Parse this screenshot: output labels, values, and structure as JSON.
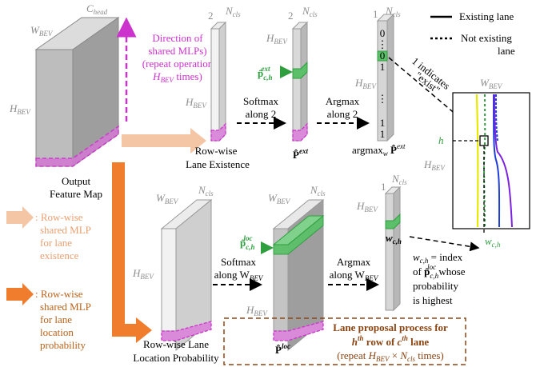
{
  "legend_lanes": {
    "existing": "Existing lane",
    "not_existing_1": "Not existing",
    "not_existing_2": "lane"
  },
  "output_map": {
    "c_head": "C",
    "c_head_sub": "head",
    "w_bev": "W",
    "w_bev_sub": "BEV",
    "h_bev": "H",
    "h_bev_sub": "BEV",
    "label_1": "Output",
    "label_2": "Feature Map"
  },
  "direction_note": {
    "line1": "Direction of",
    "line2": "shared MLPs)",
    "line3": "(repeat operation",
    "line4a": "H",
    "line4sub": "BEV",
    "line4b": " times)"
  },
  "existence_branch": {
    "dim2": "2",
    "ncls": "N",
    "ncls_sub": "cls",
    "hbev": "H",
    "hbev_sub": "BEV",
    "row_label_1": "Row-wise",
    "row_label_2": "Lane Existence",
    "softmax_1": "Softmax",
    "softmax_2": "along 2",
    "pext_label": "P̂",
    "pext_sup": "ext",
    "pcell": "p̂",
    "pcell_sub": "c,h",
    "pcell_sup": "ext",
    "argmax_1": "Argmax",
    "argmax_2": "along 2",
    "result_label": "argmax",
    "result_sub": "w",
    "result_p": " P̂",
    "result_sup": "ext",
    "vector_top": "1",
    "vector_values": [
      "0",
      "⋮",
      "0",
      "1",
      "⋮",
      "1",
      "1"
    ],
    "indicates_1": "1 indicates",
    "indicates_2": "\"exist\""
  },
  "location_branch": {
    "ncls": "N",
    "ncls_sub": "cls",
    "wbev": "W",
    "wbev_sub": "BEV",
    "hbev": "H",
    "hbev_sub": "BEV",
    "row_label_1": "Row-wise Lane",
    "row_label_2": "Location Probability",
    "softmax_1": "Softmax",
    "softmax_2": "along W",
    "softmax_2_sub": "BEV",
    "pcell": "p̂",
    "pcell_sub": "c,h",
    "pcell_sup": "loc",
    "ploc_label": "P̂",
    "ploc_sup": "loc",
    "argmax_1": "Argmax",
    "argmax_2": "along W",
    "argmax_2_sub": "BEV",
    "vector_top": "1",
    "wch": "w",
    "wch_sub": "c,h",
    "index_1": " = index",
    "index_2": "of ",
    "index_2b": " whose",
    "index_3": "probability",
    "index_4": "is highest"
  },
  "bev_view": {
    "wbev": "W",
    "wbev_sub": "BEV",
    "hbev": "H",
    "hbev_sub": "BEV",
    "h": "h",
    "wch": "w",
    "wch_sub": "c,h"
  },
  "legend_mlp": {
    "existence": [
      ": Row-wise",
      "shared MLP",
      "for lane",
      "existence"
    ],
    "location": [
      ": Row-wise",
      "shared MLP",
      "for lane",
      "location",
      "probability"
    ]
  },
  "proposal_box": {
    "line1": "Lane proposal process for",
    "line2a": "h",
    "line2sup": "th",
    "line2b": " row of ",
    "line2c": "c",
    "line2csup": "th",
    "line2d": " lane",
    "line3a": "(repeat ",
    "line3b": "H",
    "line3bsub": "BEV",
    "line3c": " × ",
    "line3d": "N",
    "line3dsub": "cls",
    "line3e": " times)"
  },
  "colors": {
    "magenta": "#cc33cc",
    "light_orange": "#f5c6a5",
    "dark_orange": "#ef7d2d",
    "green": "#3cb44b",
    "yellow_lane": "#e8e800",
    "blue_lane": "#1f3fd8",
    "purple_lane": "#7b22e0"
  }
}
